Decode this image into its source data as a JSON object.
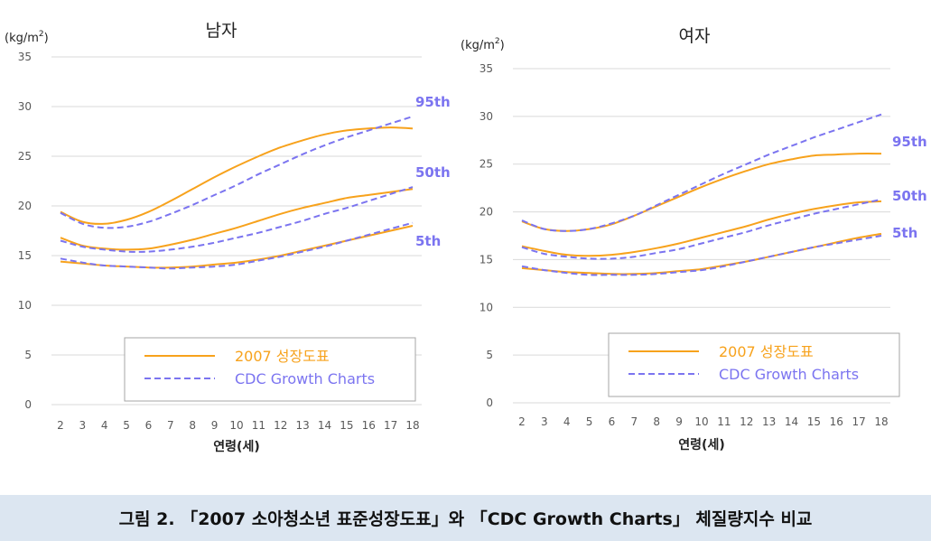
{
  "colors": {
    "study_line": "#f7a21c",
    "cdc_line": "#7b74f0",
    "grid": "#d9d9d9",
    "axis_text": "#595959",
    "caption_bg": "#dce6f1"
  },
  "caption": "그림 2. 「2007 소아청소년 표준성장도표」와 「CDC Growth Charts」 체질량지수 비교",
  "chart_data": [
    {
      "type": "line",
      "title": "남자",
      "ylabel": "(kg/m²)",
      "ylabel_main": "(kg/m",
      "ylabel_sup": "2",
      "ylabel_close": ")",
      "xlabel": "연령(세)",
      "ylim": [
        0,
        35
      ],
      "yticks": [
        0,
        5,
        10,
        15,
        20,
        25,
        30,
        35
      ],
      "ytick_labels": [
        "0",
        "5",
        "10",
        "15",
        "20",
        "25",
        "30",
        "35"
      ],
      "x": [
        2,
        3,
        4,
        5,
        6,
        7,
        8,
        9,
        10,
        11,
        12,
        13,
        14,
        15,
        16,
        17,
        18
      ],
      "x_labels": [
        "2",
        "3",
        "4",
        "5",
        "6",
        "7",
        "8",
        "9",
        "10",
        "11",
        "12",
        "13",
        "14",
        "15",
        "16",
        "17",
        "18"
      ],
      "legend": {
        "study": "2007 성장도표",
        "cdc": "CDC Growth Charts"
      },
      "percentile_labels": [
        "95th",
        "50th",
        "5th"
      ],
      "series": [
        {
          "name": "2007 95th",
          "source": "study",
          "values": [
            19.4,
            18.4,
            18.2,
            18.6,
            19.4,
            20.5,
            21.7,
            22.9,
            24.0,
            25.0,
            25.9,
            26.6,
            27.2,
            27.6,
            27.8,
            27.9,
            27.8
          ]
        },
        {
          "name": "CDC 95th",
          "source": "cdc",
          "values": [
            19.3,
            18.2,
            17.8,
            17.9,
            18.4,
            19.2,
            20.1,
            21.1,
            22.1,
            23.2,
            24.2,
            25.2,
            26.1,
            26.9,
            27.6,
            28.3,
            29.0
          ]
        },
        {
          "name": "2007 50th",
          "source": "study",
          "values": [
            16.8,
            16.0,
            15.7,
            15.6,
            15.7,
            16.1,
            16.6,
            17.2,
            17.8,
            18.5,
            19.2,
            19.8,
            20.3,
            20.8,
            21.1,
            21.4,
            21.7
          ]
        },
        {
          "name": "CDC 50th",
          "source": "cdc",
          "values": [
            16.5,
            15.9,
            15.6,
            15.4,
            15.4,
            15.6,
            15.9,
            16.3,
            16.8,
            17.3,
            17.9,
            18.5,
            19.2,
            19.8,
            20.5,
            21.2,
            21.9
          ]
        },
        {
          "name": "2007 5th",
          "source": "study",
          "values": [
            14.4,
            14.2,
            14.0,
            13.9,
            13.8,
            13.8,
            13.9,
            14.1,
            14.3,
            14.6,
            15.0,
            15.5,
            16.0,
            16.5,
            17.0,
            17.5,
            18.0
          ]
        },
        {
          "name": "CDC 5th",
          "source": "cdc",
          "values": [
            14.7,
            14.3,
            14.0,
            13.9,
            13.8,
            13.7,
            13.8,
            13.9,
            14.1,
            14.5,
            14.9,
            15.4,
            15.9,
            16.5,
            17.1,
            17.7,
            18.3
          ]
        }
      ]
    },
    {
      "type": "line",
      "title": "여자",
      "ylabel": "(kg/m²)",
      "ylabel_main": "(kg/m",
      "ylabel_sup": "2",
      "ylabel_close": ")",
      "xlabel": "연령(세)",
      "ylim": [
        0,
        35
      ],
      "yticks": [
        0,
        5,
        10,
        15,
        20,
        25,
        30,
        35
      ],
      "ytick_labels": [
        "0",
        "5",
        "10",
        "15",
        "20",
        "25",
        "30",
        "35"
      ],
      "x": [
        2,
        3,
        4,
        5,
        6,
        7,
        8,
        9,
        10,
        11,
        12,
        13,
        14,
        15,
        16,
        17,
        18
      ],
      "x_labels": [
        "2",
        "3",
        "4",
        "5",
        "6",
        "7",
        "8",
        "9",
        "10",
        "11",
        "12",
        "13",
        "14",
        "15",
        "16",
        "17",
        "18"
      ],
      "legend": {
        "study": "2007 성장도표",
        "cdc": "CDC Growth Charts"
      },
      "percentile_labels": [
        "95th",
        "50th",
        "5th"
      ],
      "series": [
        {
          "name": "2007 95th",
          "source": "study",
          "values": [
            19.0,
            18.2,
            18.0,
            18.2,
            18.7,
            19.6,
            20.6,
            21.6,
            22.6,
            23.5,
            24.3,
            25.0,
            25.5,
            25.9,
            26.0,
            26.1,
            26.1
          ]
        },
        {
          "name": "CDC 95th",
          "source": "cdc",
          "values": [
            19.1,
            18.2,
            18.0,
            18.2,
            18.8,
            19.6,
            20.7,
            21.8,
            22.9,
            24.0,
            25.0,
            26.0,
            26.9,
            27.8,
            28.6,
            29.4,
            30.2
          ]
        },
        {
          "name": "2007 50th",
          "source": "study",
          "values": [
            16.4,
            15.9,
            15.5,
            15.4,
            15.5,
            15.8,
            16.2,
            16.7,
            17.3,
            17.9,
            18.5,
            19.2,
            19.8,
            20.3,
            20.7,
            21.0,
            21.1
          ]
        },
        {
          "name": "CDC 50th",
          "source": "cdc",
          "values": [
            16.3,
            15.6,
            15.3,
            15.1,
            15.1,
            15.3,
            15.7,
            16.1,
            16.7,
            17.3,
            17.9,
            18.6,
            19.2,
            19.8,
            20.3,
            20.8,
            21.3
          ]
        },
        {
          "name": "2007 5th",
          "source": "study",
          "values": [
            14.1,
            13.9,
            13.7,
            13.6,
            13.5,
            13.5,
            13.6,
            13.8,
            14.0,
            14.4,
            14.8,
            15.3,
            15.8,
            16.3,
            16.8,
            17.3,
            17.7
          ]
        },
        {
          "name": "CDC 5th",
          "source": "cdc",
          "values": [
            14.3,
            13.9,
            13.6,
            13.4,
            13.4,
            13.4,
            13.5,
            13.7,
            13.9,
            14.3,
            14.8,
            15.3,
            15.8,
            16.3,
            16.7,
            17.1,
            17.5
          ]
        }
      ]
    }
  ]
}
